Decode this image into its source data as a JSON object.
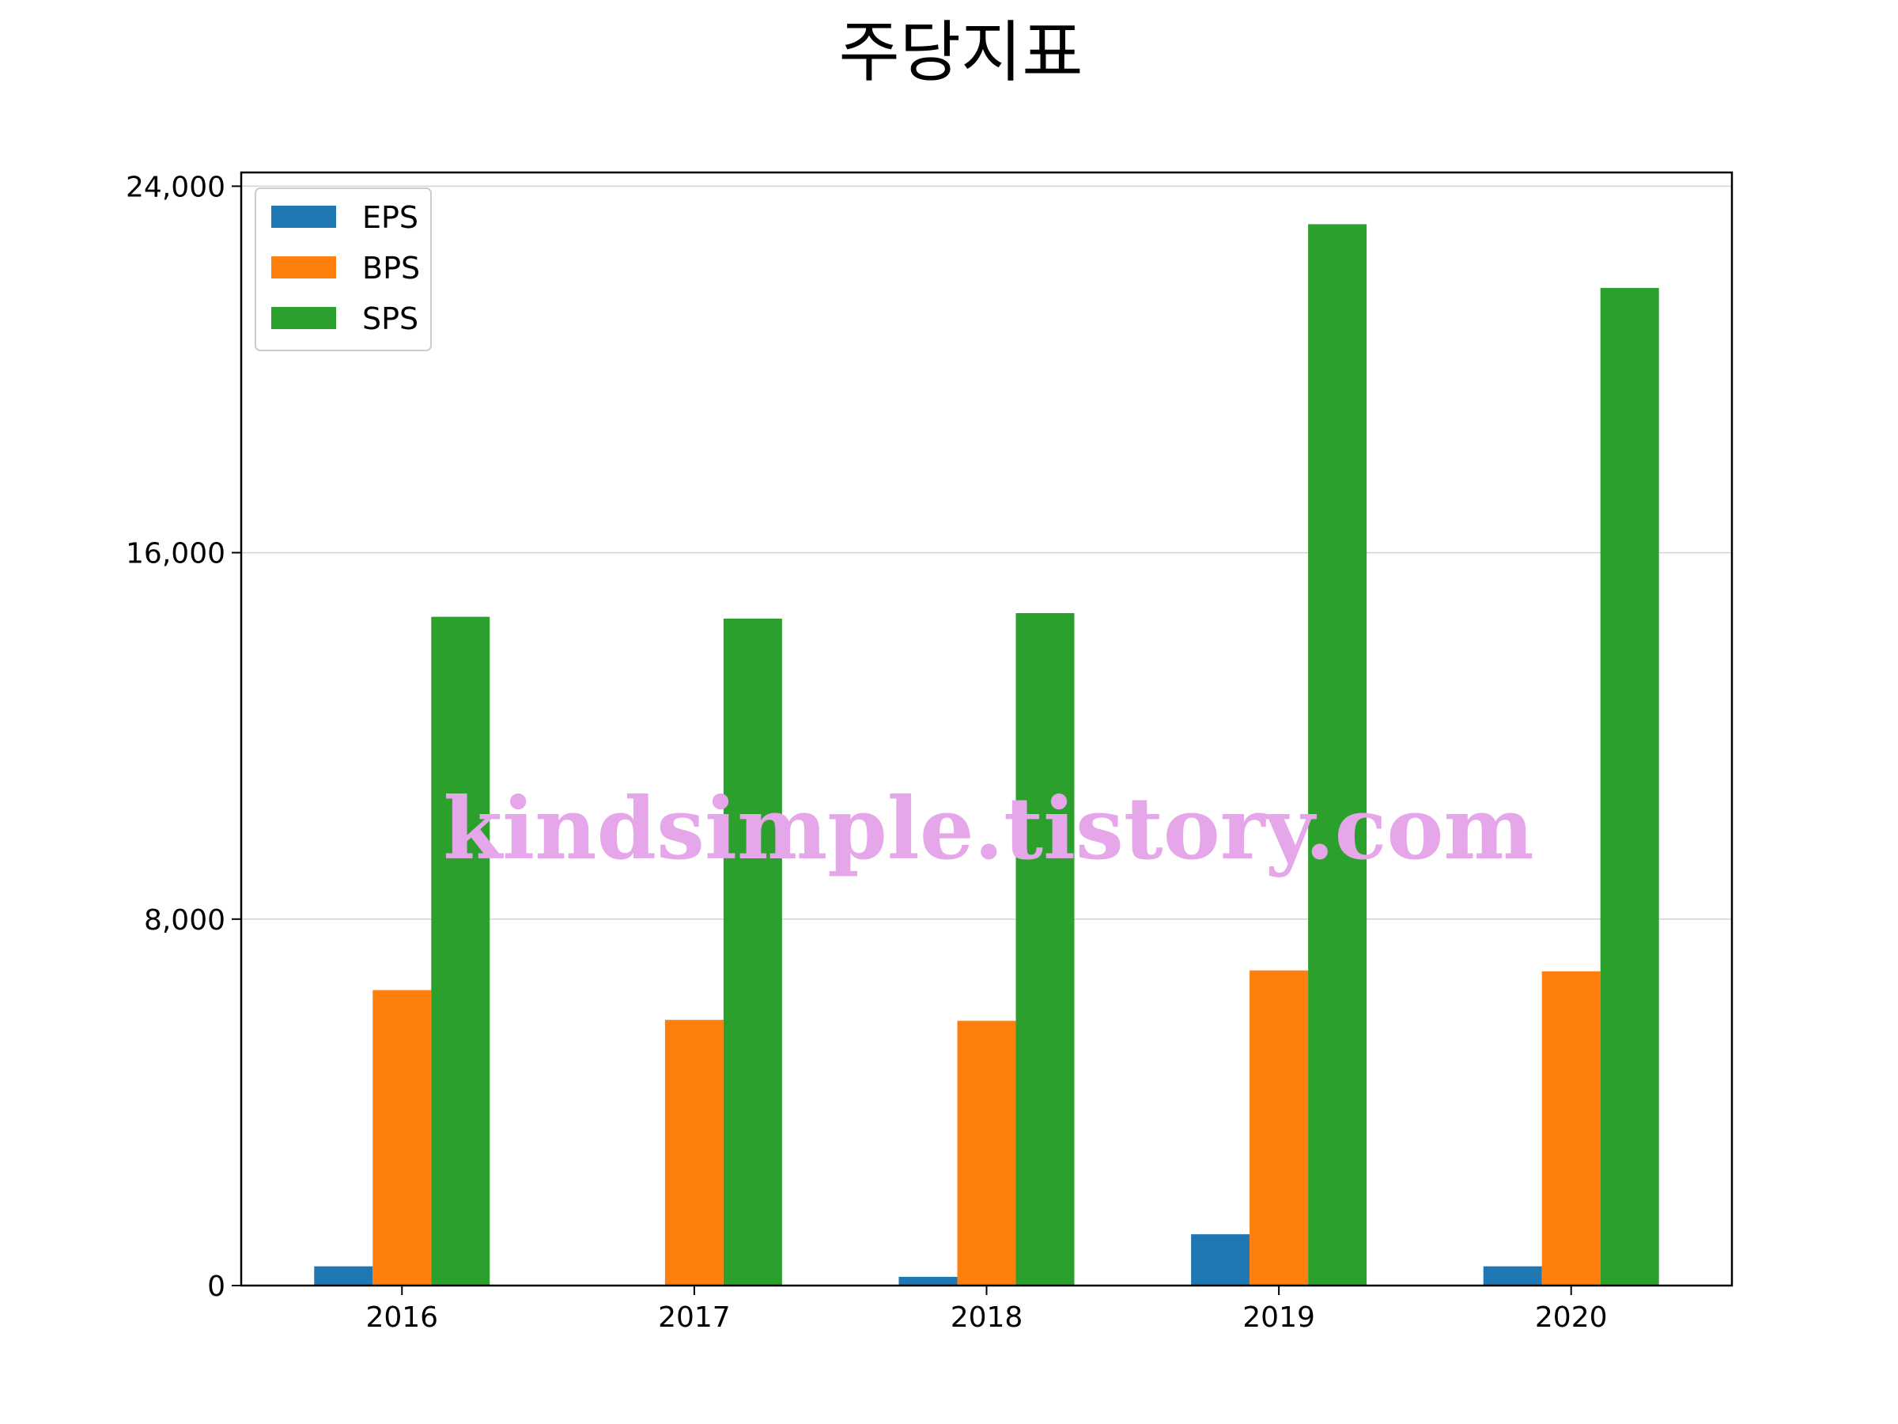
{
  "chart_data": {
    "type": "bar",
    "title": "주당지표",
    "xlabel": "",
    "ylabel": "",
    "categories": [
      "2016",
      "2017",
      "2018",
      "2019",
      "2020"
    ],
    "series": [
      {
        "name": "EPS",
        "color": "#1f77b4",
        "values": [
          420,
          0,
          190,
          1120,
          420
        ]
      },
      {
        "name": "BPS",
        "color": "#ff7f0e",
        "values": [
          6450,
          5800,
          5780,
          6880,
          6860
        ]
      },
      {
        "name": "SPS",
        "color": "#2ca02c",
        "values": [
          14600,
          14560,
          14680,
          23170,
          21780
        ]
      }
    ],
    "ylim": [
      0,
      24300
    ],
    "yticks": [
      0,
      8000,
      16000,
      24000
    ],
    "ytick_labels": [
      "0",
      "8,000",
      "16,000",
      "24,000"
    ],
    "grid": "horizontal",
    "legend_position": "top-left",
    "watermark": "kindsimple.tistory.com",
    "watermark_color": "#e6a6ea"
  }
}
